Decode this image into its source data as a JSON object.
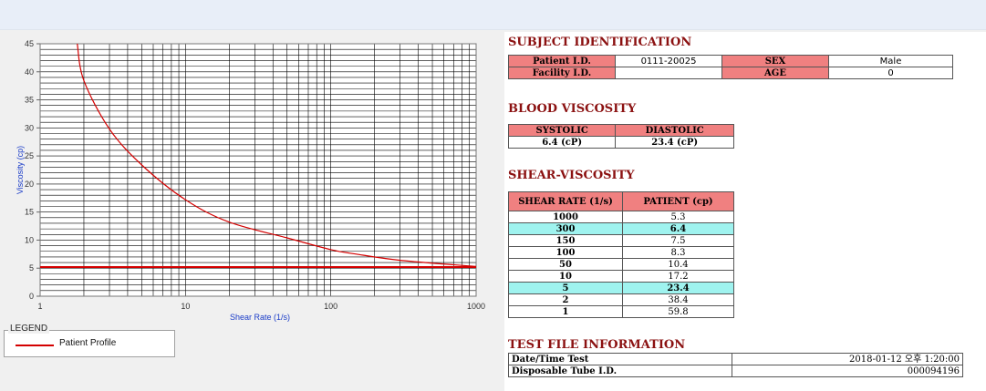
{
  "chart_data": {
    "type": "line",
    "xlabel": "Shear Rate (1/s)",
    "ylabel": "Viscosity (cp)",
    "xscale": "log",
    "xlim": [
      1,
      1000
    ],
    "ylim": [
      0,
      45
    ],
    "xticks": [
      "1",
      "10",
      "100",
      "1000"
    ],
    "yticks": [
      "0",
      "5",
      "10",
      "15",
      "20",
      "25",
      "30",
      "35",
      "40",
      "45"
    ],
    "grid": true,
    "series": [
      {
        "name": "Patient Profile",
        "x": [
          1.8,
          2,
          3,
          5,
          10,
          20,
          50,
          100,
          150,
          300,
          1000
        ],
        "y": [
          45,
          38.4,
          29.8,
          23.4,
          17.2,
          13.2,
          10.4,
          8.3,
          7.5,
          6.4,
          5.3
        ]
      },
      {
        "name": "",
        "x": [
          1,
          1000
        ],
        "y": [
          5.2,
          5.2
        ]
      }
    ],
    "colors": [
      "#d40000"
    ]
  },
  "legend": {
    "title": "LEGEND",
    "item": "Patient Profile"
  },
  "subject": {
    "heading": "SUBJECT IDENTIFICATION",
    "patient_id_label": "Patient I.D.",
    "patient_id": "0111-20025",
    "facility_id_label": "Facility I.D.",
    "facility_id": "",
    "sex_label": "SEX",
    "sex": "Male",
    "age_label": "AGE",
    "age": "0"
  },
  "blood": {
    "heading": "BLOOD VISCOSITY",
    "systolic_label": "SYSTOLIC",
    "diastolic_label": "DIASTOLIC",
    "systolic": "6.4 (cP)",
    "diastolic": "23.4 (cP)"
  },
  "shear": {
    "heading": "SHEAR-VISCOSITY",
    "col1": "SHEAR RATE (1/s)",
    "col2": "PATIENT (cp)",
    "rows": [
      {
        "rate": "1000",
        "value": "5.3",
        "hl": false
      },
      {
        "rate": "300",
        "value": "6.4",
        "hl": true
      },
      {
        "rate": "150",
        "value": "7.5",
        "hl": false
      },
      {
        "rate": "100",
        "value": "8.3",
        "hl": false
      },
      {
        "rate": "50",
        "value": "10.4",
        "hl": false
      },
      {
        "rate": "10",
        "value": "17.2",
        "hl": false
      },
      {
        "rate": "5",
        "value": "23.4",
        "hl": true
      },
      {
        "rate": "2",
        "value": "38.4",
        "hl": false
      },
      {
        "rate": "1",
        "value": "59.8",
        "hl": false
      }
    ]
  },
  "testfile": {
    "heading": "TEST FILE INFORMATION",
    "date_label": "Date/Time Test",
    "date_value": "2018-01-12 오후 1:20:00",
    "tube_label": "Disposable Tube I.D.",
    "tube_value": "000094196"
  },
  "colors": {
    "accent": "#8b1111",
    "header_fill": "#f08080",
    "highlight": "#9ff3ef",
    "line": "#d40000"
  }
}
